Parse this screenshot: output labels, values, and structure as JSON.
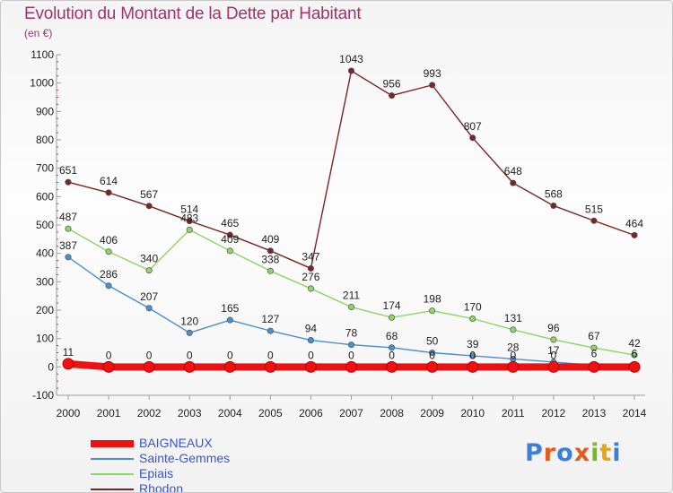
{
  "title": "Evolution du Montant de la Dette par Habitant",
  "unit_label": "(en €)",
  "logo": {
    "text": "Proxiti",
    "letter_colors": [
      "#3c7fd8",
      "#e85a1c",
      "#3c7fd8",
      "#e85a1c",
      "#7bb335",
      "#e8a31c",
      "#3c7fd8"
    ]
  },
  "chart_data": {
    "type": "line",
    "title": "Evolution du Montant de la Dette par Habitant",
    "subtitle": "(en €)",
    "x": [
      2000,
      2001,
      2002,
      2003,
      2004,
      2005,
      2006,
      2007,
      2008,
      2009,
      2010,
      2011,
      2012,
      2013,
      2014
    ],
    "ylim": [
      -100,
      1100
    ],
    "yticks": [
      -100,
      0,
      100,
      200,
      300,
      400,
      500,
      600,
      700,
      800,
      900,
      1000,
      1100
    ],
    "grid": false,
    "legend_position": "bottom-left",
    "series": [
      {
        "name": "BAIGNEAUX",
        "color": "#ee1111",
        "values": [
          11,
          0,
          0,
          0,
          0,
          0,
          0,
          0,
          0,
          0,
          0,
          0,
          0,
          0,
          0
        ],
        "labels": [
          "11",
          "0",
          "0",
          "0",
          "0",
          "0",
          "0",
          "0",
          "0",
          "0",
          "0",
          "0",
          "0",
          "",
          ""
        ]
      },
      {
        "name": "Sainte-Gemmes",
        "color": "#4a8fd0",
        "values": [
          387,
          286,
          207,
          120,
          165,
          127,
          94,
          78,
          68,
          50,
          39,
          28,
          17,
          6,
          6
        ],
        "labels": [
          "387",
          "286",
          "207",
          "120",
          "165",
          "127",
          "94",
          "78",
          "68",
          "50",
          "39",
          "28",
          "17",
          "6",
          "6"
        ]
      },
      {
        "name": "Epiais",
        "color": "#8fd468",
        "values": [
          487,
          406,
          340,
          483,
          409,
          338,
          276,
          211,
          174,
          198,
          170,
          131,
          96,
          67,
          42
        ],
        "labels": [
          "487",
          "406",
          "340",
          "483",
          "409",
          "338",
          "276",
          "211",
          "174",
          "198",
          "170",
          "131",
          "96",
          "67",
          "42"
        ]
      },
      {
        "name": "Rhodon",
        "color": "#7a2626",
        "values": [
          651,
          614,
          567,
          514,
          465,
          409,
          347,
          1043,
          956,
          993,
          807,
          648,
          568,
          515,
          464
        ],
        "labels": [
          "651",
          "614",
          "567",
          "514",
          "465",
          "409",
          "347",
          "1043",
          "956",
          "993",
          "807",
          "648",
          "568",
          "515",
          "464"
        ]
      }
    ]
  }
}
